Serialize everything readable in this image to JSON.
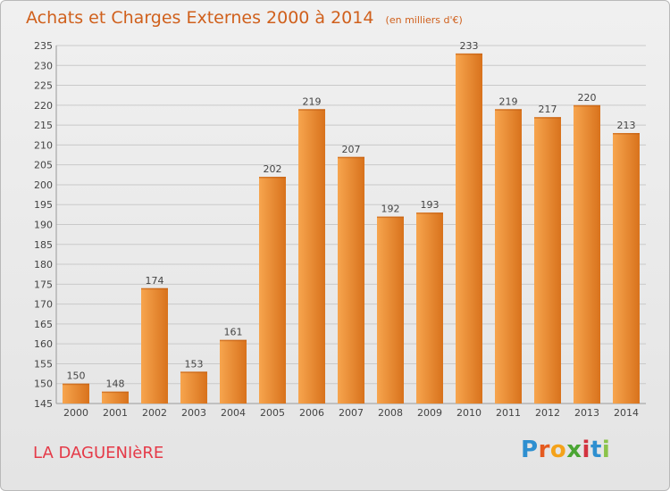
{
  "header": {
    "title": "Achats et Charges Externes 2000 à 2014",
    "subtitle": "(en milliers d'€)"
  },
  "footer": {
    "place": "LA DAGUENIèRE"
  },
  "brand": {
    "text": "Proxiti",
    "letter_colors": [
      "#2e8fd0",
      "#e55a1f",
      "#f4a21a",
      "#4aa533",
      "#d2333f",
      "#2e8fd0",
      "#8bc34a"
    ]
  },
  "colors": {
    "bar_light": "#f7a54e",
    "bar_dark": "#d8721c",
    "grid": "#c9c9c9",
    "axis_text": "#444444"
  },
  "chart_data": {
    "type": "bar",
    "title": "Achats et Charges Externes 2000 à 2014",
    "subtitle": "(en milliers d'€)",
    "xlabel": "",
    "ylabel": "",
    "categories": [
      "2000",
      "2001",
      "2002",
      "2003",
      "2004",
      "2005",
      "2006",
      "2007",
      "2008",
      "2009",
      "2010",
      "2011",
      "2012",
      "2013",
      "2014"
    ],
    "values": [
      150,
      148,
      174,
      153,
      161,
      202,
      219,
      207,
      192,
      193,
      233,
      219,
      217,
      220,
      213
    ],
    "value_labels": [
      "150",
      "148",
      "174",
      "153",
      "161",
      "202",
      "219",
      "207",
      "192",
      "193",
      "233",
      "219",
      "217",
      "220",
      "213"
    ],
    "ylim": [
      145,
      235
    ],
    "yticks": [
      145,
      150,
      155,
      160,
      165,
      170,
      175,
      180,
      185,
      190,
      195,
      200,
      205,
      210,
      215,
      220,
      225,
      230,
      235
    ],
    "grid": true
  }
}
